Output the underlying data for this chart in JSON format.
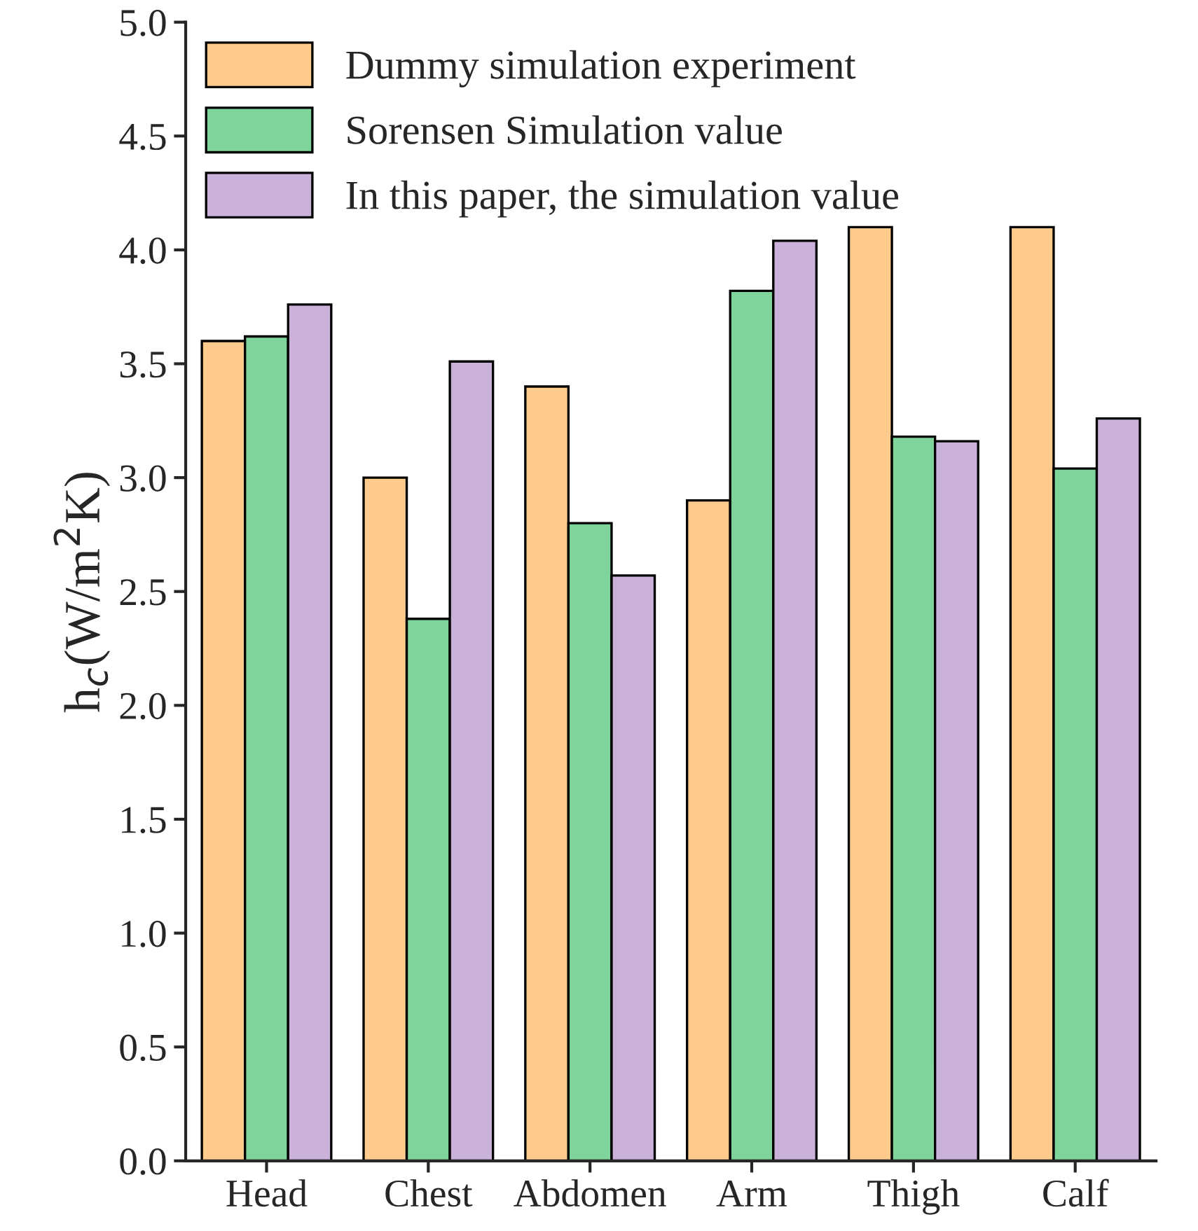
{
  "chart_data": {
    "type": "bar",
    "ylabel": "h$_{c}$(W/m$^{2}$K)",
    "categories": [
      "Head",
      "Chest",
      "Abdomen",
      "Arm",
      "Thigh",
      "Calf"
    ],
    "series": [
      {
        "name": "Dummy simulation experiment",
        "color": "#fecb8c",
        "values": [
          3.6,
          3.0,
          3.4,
          2.9,
          4.1,
          4.1
        ]
      },
      {
        "name": "Sorensen Simulation value",
        "color": "#7fd49c",
        "values": [
          3.62,
          2.38,
          2.8,
          3.82,
          3.18,
          3.04
        ]
      },
      {
        "name": "In this paper, the simulation value",
        "color": "#c9b1da",
        "values": [
          3.76,
          3.51,
          2.57,
          4.04,
          3.16,
          3.26
        ]
      }
    ],
    "ylim": [
      0,
      5
    ],
    "yticks": [
      {
        "value": 0,
        "label": "0.0"
      },
      0.5,
      {
        "value": 1,
        "label": "1.0"
      },
      1.5,
      {
        "value": 2,
        "label": "2.0"
      },
      2.5,
      {
        "value": 3,
        "label": "3.0"
      },
      3.5,
      {
        "value": 4,
        "label": "4.0"
      },
      4.5,
      {
        "value": 5,
        "label": "5.0"
      }
    ],
    "grid": false,
    "legend": "top left"
  }
}
